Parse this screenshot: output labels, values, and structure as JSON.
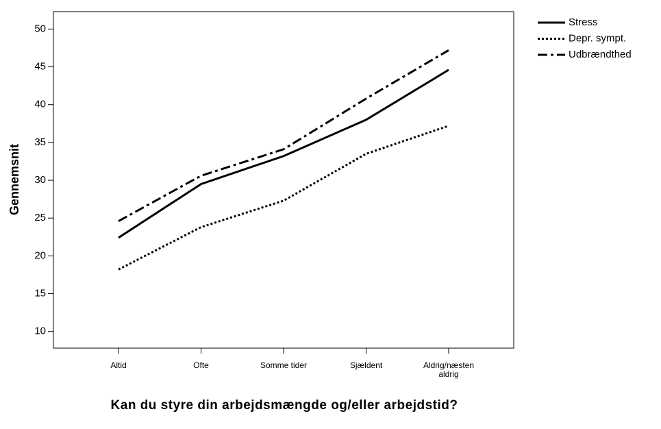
{
  "chart_data": {
    "type": "line",
    "x_label": "Kan du styre din arbejdsmængde og/eller arbejdstid?",
    "y_label": "Gennemsnit",
    "categories": [
      "Altid",
      "Ofte",
      "Somme tider",
      "Sjældent",
      "Aldrig/næsten aldrig"
    ],
    "series": [
      {
        "name": "Stress",
        "color": "#000000",
        "style": "solid",
        "values": [
          22.4,
          29.5,
          33.2,
          38.0,
          44.6
        ]
      },
      {
        "name": "Depr. sympt.",
        "color": "#000000",
        "style": "dotted",
        "values": [
          18.2,
          23.8,
          27.3,
          33.5,
          37.2
        ]
      },
      {
        "name": "Udbrændthed",
        "color": "#000000",
        "style": "dashdot",
        "values": [
          24.6,
          30.6,
          34.1,
          40.8,
          47.2
        ]
      }
    ],
    "ylim": [
      7.8,
      52.3
    ],
    "yticks": [
      10,
      15,
      20,
      25,
      30,
      35,
      40,
      45,
      50
    ],
    "legend": "outside-right"
  }
}
